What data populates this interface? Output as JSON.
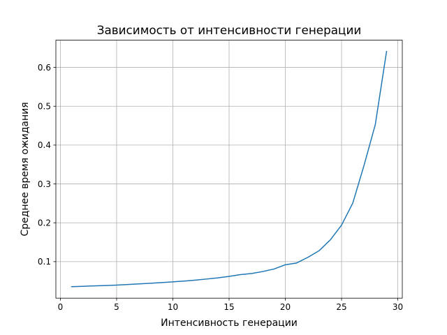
{
  "chart_data": {
    "type": "line",
    "title": "Зависимость от интенсивности генерации",
    "xlabel": "Интенсивность генерации",
    "ylabel": "Среднее время ожидания",
    "xlim": [
      -0.4,
      30.4
    ],
    "ylim": [
      0.006,
      0.67
    ],
    "xticks": [
      0,
      5,
      10,
      15,
      20,
      25,
      30
    ],
    "xtick_labels": [
      "0",
      "5",
      "10",
      "15",
      "20",
      "25",
      "30"
    ],
    "yticks": [
      0.1,
      0.2,
      0.3,
      0.4,
      0.5,
      0.6
    ],
    "ytick_labels": [
      "0.1",
      "0.2",
      "0.3",
      "0.4",
      "0.5",
      "0.6"
    ],
    "grid": true,
    "line_color": "#1f77b4",
    "series": [
      {
        "x": [
          1,
          2,
          3,
          4,
          5,
          6,
          7,
          8,
          9,
          10,
          11,
          12,
          13,
          14,
          15,
          16,
          17,
          18,
          19,
          20,
          21,
          22,
          23,
          24,
          25,
          26,
          27,
          28,
          29
        ],
        "values": [
          0.0355,
          0.0365,
          0.0375,
          0.0385,
          0.0397,
          0.0412,
          0.0428,
          0.0443,
          0.0462,
          0.048,
          0.05,
          0.0525,
          0.0552,
          0.0582,
          0.062,
          0.0665,
          0.0695,
          0.0745,
          0.081,
          0.092,
          0.0965,
          0.111,
          0.128,
          0.156,
          0.194,
          0.251,
          0.348,
          0.453,
          0.641
        ]
      }
    ]
  }
}
